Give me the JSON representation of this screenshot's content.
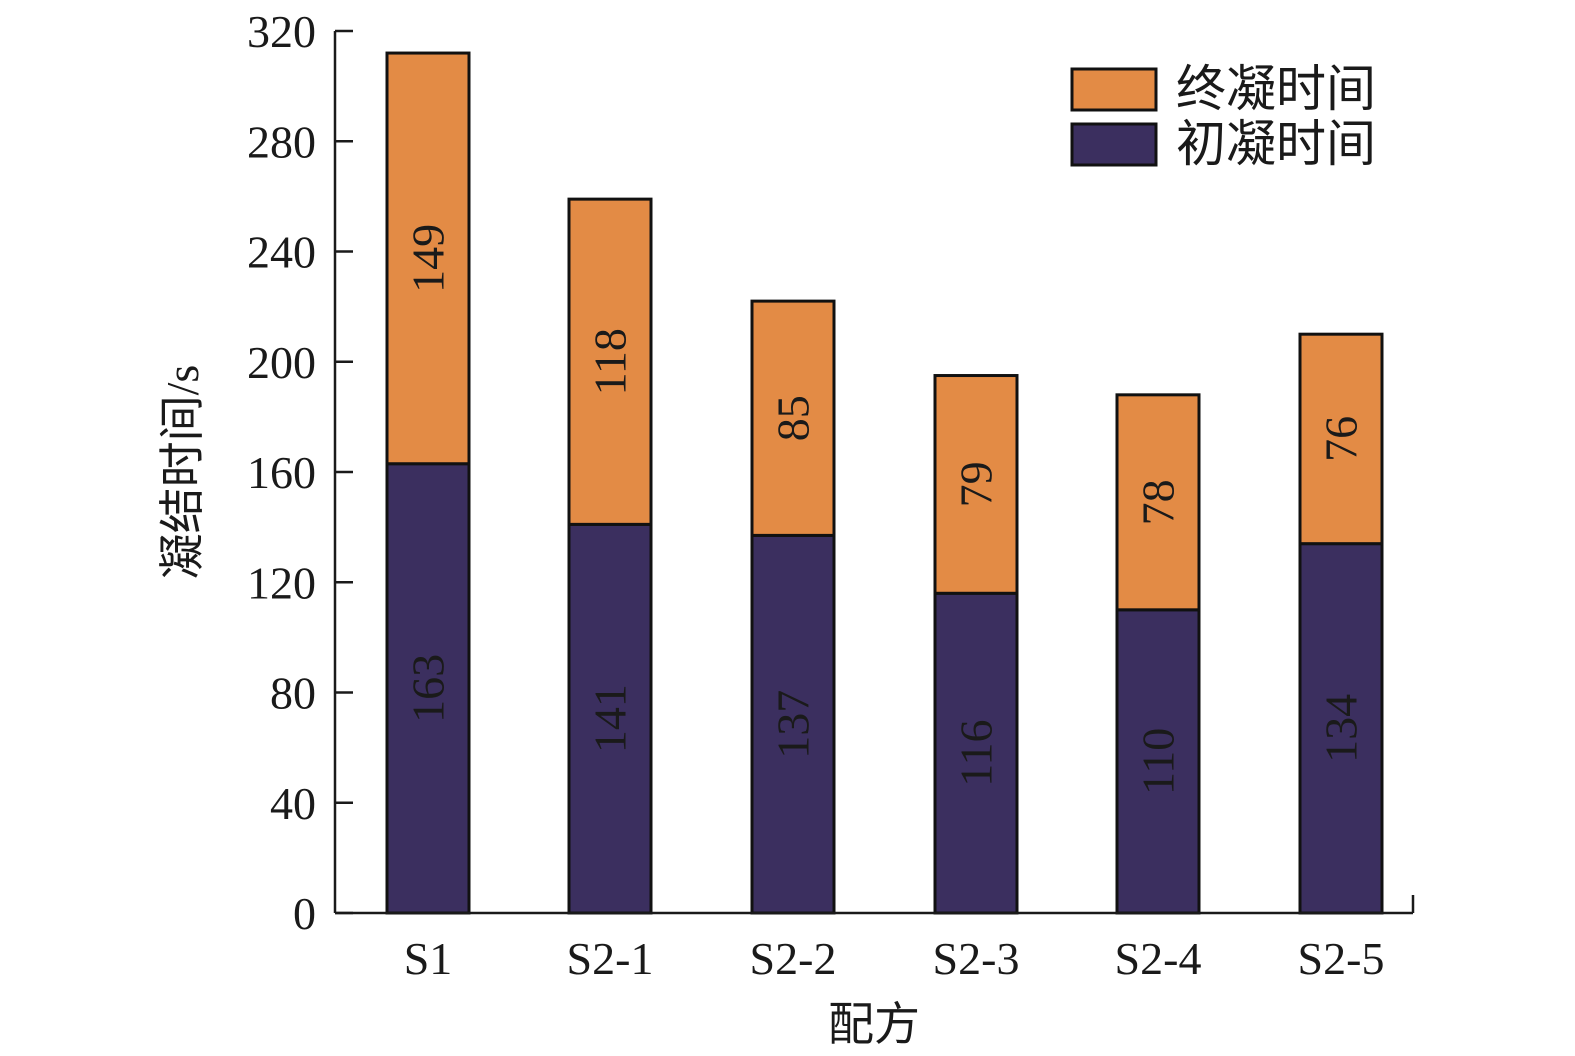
{
  "chart_data": {
    "type": "bar",
    "stacked": true,
    "categories": [
      "S1",
      "S2-1",
      "S2-2",
      "S2-3",
      "S2-4",
      "S2-5"
    ],
    "series": [
      {
        "name": "初凝时间",
        "values": [
          163,
          141,
          137,
          116,
          110,
          134
        ],
        "color": "#3b2f5f",
        "label_color": "#ffffff"
      },
      {
        "name": "终凝时间",
        "values": [
          149,
          118,
          85,
          79,
          78,
          76
        ],
        "color": "#e38b45",
        "label_color": "#1a1a1a"
      }
    ],
    "xlabel": "配方",
    "ylabel": "凝结时间/s",
    "ylim": [
      0,
      320
    ],
    "yticks": [
      0,
      40,
      80,
      120,
      160,
      200,
      240,
      280,
      320
    ],
    "grid": false,
    "legend_position": "top-right",
    "legend_order": [
      "终凝时间",
      "初凝时间"
    ]
  }
}
